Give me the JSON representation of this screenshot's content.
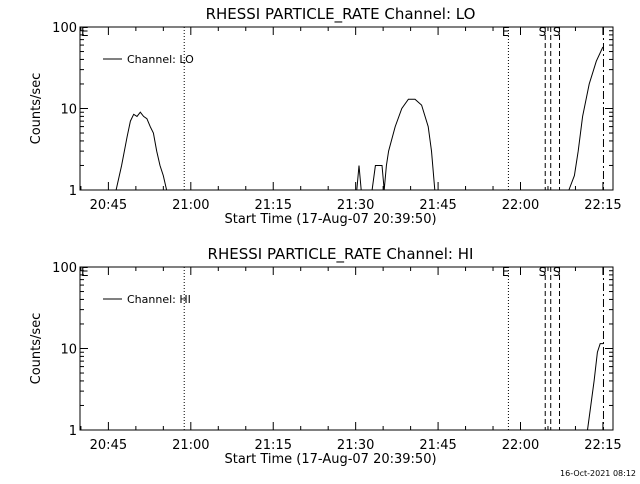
{
  "footer": {
    "timestamp": "16-Oct-2021 08:12"
  },
  "chart_data": [
    {
      "type": "line",
      "title": "RHESSI PARTICLE_RATE Channel: LO",
      "xlabel": "Start Time (17-Aug-07 20:39:50)",
      "ylabel": "Counts/sec",
      "yscale": "log",
      "ylim": [
        1,
        100
      ],
      "y_tick_labels": [
        "1",
        "10",
        "100"
      ],
      "xlim_minutes_after_20:39:50": [
        0,
        97
      ],
      "x_tick_labels": [
        "20:45",
        "21:00",
        "21:15",
        "21:30",
        "21:45",
        "22:00",
        "22:15"
      ],
      "legend": {
        "position": "top-left",
        "entries": [
          "Channel: LO"
        ]
      },
      "events": [
        {
          "label": "E",
          "time": "20:39:50",
          "style": "none"
        },
        {
          "label": "",
          "time": "20:58:48",
          "style": "dotted"
        },
        {
          "label": "E",
          "time": "21:57:48",
          "style": "dotted"
        },
        {
          "label": "S",
          "time": "22:04:30",
          "style": "dashed"
        },
        {
          "label": "",
          "time": "22:05:30",
          "style": "dashed"
        },
        {
          "label": "S",
          "time": "22:07:06",
          "style": "dashed"
        },
        {
          "label": "",
          "time": "22:15:06",
          "style": "dashdot"
        }
      ],
      "series": [
        {
          "name": "Channel: LO",
          "segments": [
            [
              [
                "20:46:24",
                1
              ],
              [
                "20:47:24",
                2
              ],
              [
                "20:48:24",
                4.5
              ],
              [
                "20:49:00",
                7
              ],
              [
                "20:49:36",
                8.5
              ],
              [
                "20:50:12",
                8
              ],
              [
                "20:50:48",
                9
              ],
              [
                "20:51:24",
                8
              ],
              [
                "20:52:00",
                7.5
              ],
              [
                "20:52:36",
                6
              ],
              [
                "20:53:12",
                5
              ],
              [
                "20:53:48",
                3
              ],
              [
                "20:54:24",
                2
              ],
              [
                "20:55:00",
                1.5
              ],
              [
                "20:55:36",
                1
              ]
            ],
            [
              [
                "21:30:12",
                1
              ],
              [
                "21:30:36",
                2
              ],
              [
                "21:31:00",
                1
              ]
            ],
            [
              [
                "21:33:00",
                1
              ],
              [
                "21:33:36",
                2
              ],
              [
                "21:34:48",
                2
              ],
              [
                "21:35:12",
                1
              ],
              [
                "21:35:36",
                2
              ],
              [
                "21:36:00",
                3
              ],
              [
                "21:37:12",
                6
              ],
              [
                "21:38:24",
                10
              ],
              [
                "21:39:36",
                13
              ],
              [
                "21:40:48",
                13
              ],
              [
                "21:42:00",
                11
              ],
              [
                "21:43:12",
                6
              ],
              [
                "21:43:48",
                3
              ],
              [
                "21:44:24",
                1
              ]
            ],
            [
              [
                "22:08:48",
                1
              ],
              [
                "22:09:48",
                1.5
              ],
              [
                "22:10:30",
                3
              ],
              [
                "22:11:18",
                8
              ],
              [
                "22:12:30",
                20
              ],
              [
                "22:13:48",
                38
              ],
              [
                "22:15:00",
                57
              ]
            ]
          ]
        }
      ]
    },
    {
      "type": "line",
      "title": "RHESSI PARTICLE_RATE Channel: HI",
      "xlabel": "Start Time (17-Aug-07 20:39:50)",
      "ylabel": "Counts/sec",
      "yscale": "log",
      "ylim": [
        1,
        100
      ],
      "y_tick_labels": [
        "1",
        "10",
        "100"
      ],
      "xlim_minutes_after_20:39:50": [
        0,
        97
      ],
      "x_tick_labels": [
        "20:45",
        "21:00",
        "21:15",
        "21:30",
        "21:45",
        "22:00",
        "22:15"
      ],
      "legend": {
        "position": "top-left",
        "entries": [
          "Channel: HI"
        ]
      },
      "events": [
        {
          "label": "E",
          "time": "20:39:50",
          "style": "none"
        },
        {
          "label": "",
          "time": "20:58:48",
          "style": "dotted"
        },
        {
          "label": "E",
          "time": "21:57:48",
          "style": "dotted"
        },
        {
          "label": "S",
          "time": "22:04:30",
          "style": "dashed"
        },
        {
          "label": "",
          "time": "22:05:30",
          "style": "dashed"
        },
        {
          "label": "S",
          "time": "22:07:06",
          "style": "dashed"
        },
        {
          "label": "",
          "time": "22:15:06",
          "style": "dashdot"
        }
      ],
      "series": [
        {
          "name": "Channel: HI",
          "segments": [
            [
              [
                "22:12:12",
                1
              ],
              [
                "22:12:48",
                2
              ],
              [
                "22:13:24",
                4
              ],
              [
                "22:14:00",
                9
              ],
              [
                "22:14:30",
                11.5
              ],
              [
                "22:15:06",
                11.5
              ]
            ]
          ]
        }
      ]
    }
  ]
}
